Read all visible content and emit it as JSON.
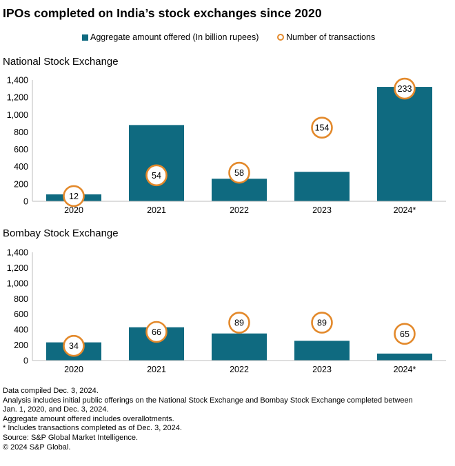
{
  "title": "IPOs completed on India’s stock exchanges since 2020",
  "colors": {
    "bar": "#0f6a80",
    "circle": "#e3892b",
    "axis": "#bdbdbd"
  },
  "legend": {
    "bar_label": "Aggregate amount offered (In billion rupees)",
    "circle_label": "Number of transactions"
  },
  "chart_data": [
    {
      "type": "bar",
      "title": "National Stock Exchange",
      "categories": [
        "2020",
        "2021",
        "2022",
        "2023",
        "2024*"
      ],
      "series": [
        {
          "name": "Aggregate amount offered (In billion rupees)",
          "values": [
            80,
            880,
            260,
            340,
            1320
          ]
        },
        {
          "name": "Number of transactions",
          "values": [
            12,
            54,
            58,
            154,
            233
          ],
          "display_level": [
            60,
            300,
            330,
            850,
            1300
          ]
        }
      ],
      "ylim": [
        0,
        1400
      ],
      "yticks": [
        "0",
        "200",
        "400",
        "600",
        "800",
        "1,000",
        "1,200",
        "1,400"
      ],
      "xlabel": "",
      "ylabel": ""
    },
    {
      "type": "bar",
      "title": "Bombay Stock Exchange",
      "categories": [
        "2020",
        "2021",
        "2022",
        "2023",
        "2024*"
      ],
      "series": [
        {
          "name": "Aggregate amount offered (In billion rupees)",
          "values": [
            235,
            430,
            350,
            255,
            90
          ]
        },
        {
          "name": "Number of transactions",
          "values": [
            34,
            66,
            89,
            89,
            65
          ],
          "display_level": [
            190,
            370,
            490,
            490,
            345
          ]
        }
      ],
      "ylim": [
        0,
        1400
      ],
      "yticks": [
        "0",
        "200",
        "400",
        "600",
        "800",
        "1,000",
        "1,200",
        "1,400"
      ],
      "xlabel": "",
      "ylabel": ""
    }
  ],
  "notes": [
    "Data compiled Dec. 3, 2024.",
    "Analysis includes initial public offerings on the National Stock Exchange and Bombay Stock Exchange completed between",
    "Jan. 1, 2020, and Dec. 3, 2024.",
    "Aggregate amount offered includes overallotments.",
    "* Includes transactions completed as of Dec. 3, 2024.",
    "Source: S&P Global Market Intelligence.",
    "© 2024 S&P Global."
  ]
}
